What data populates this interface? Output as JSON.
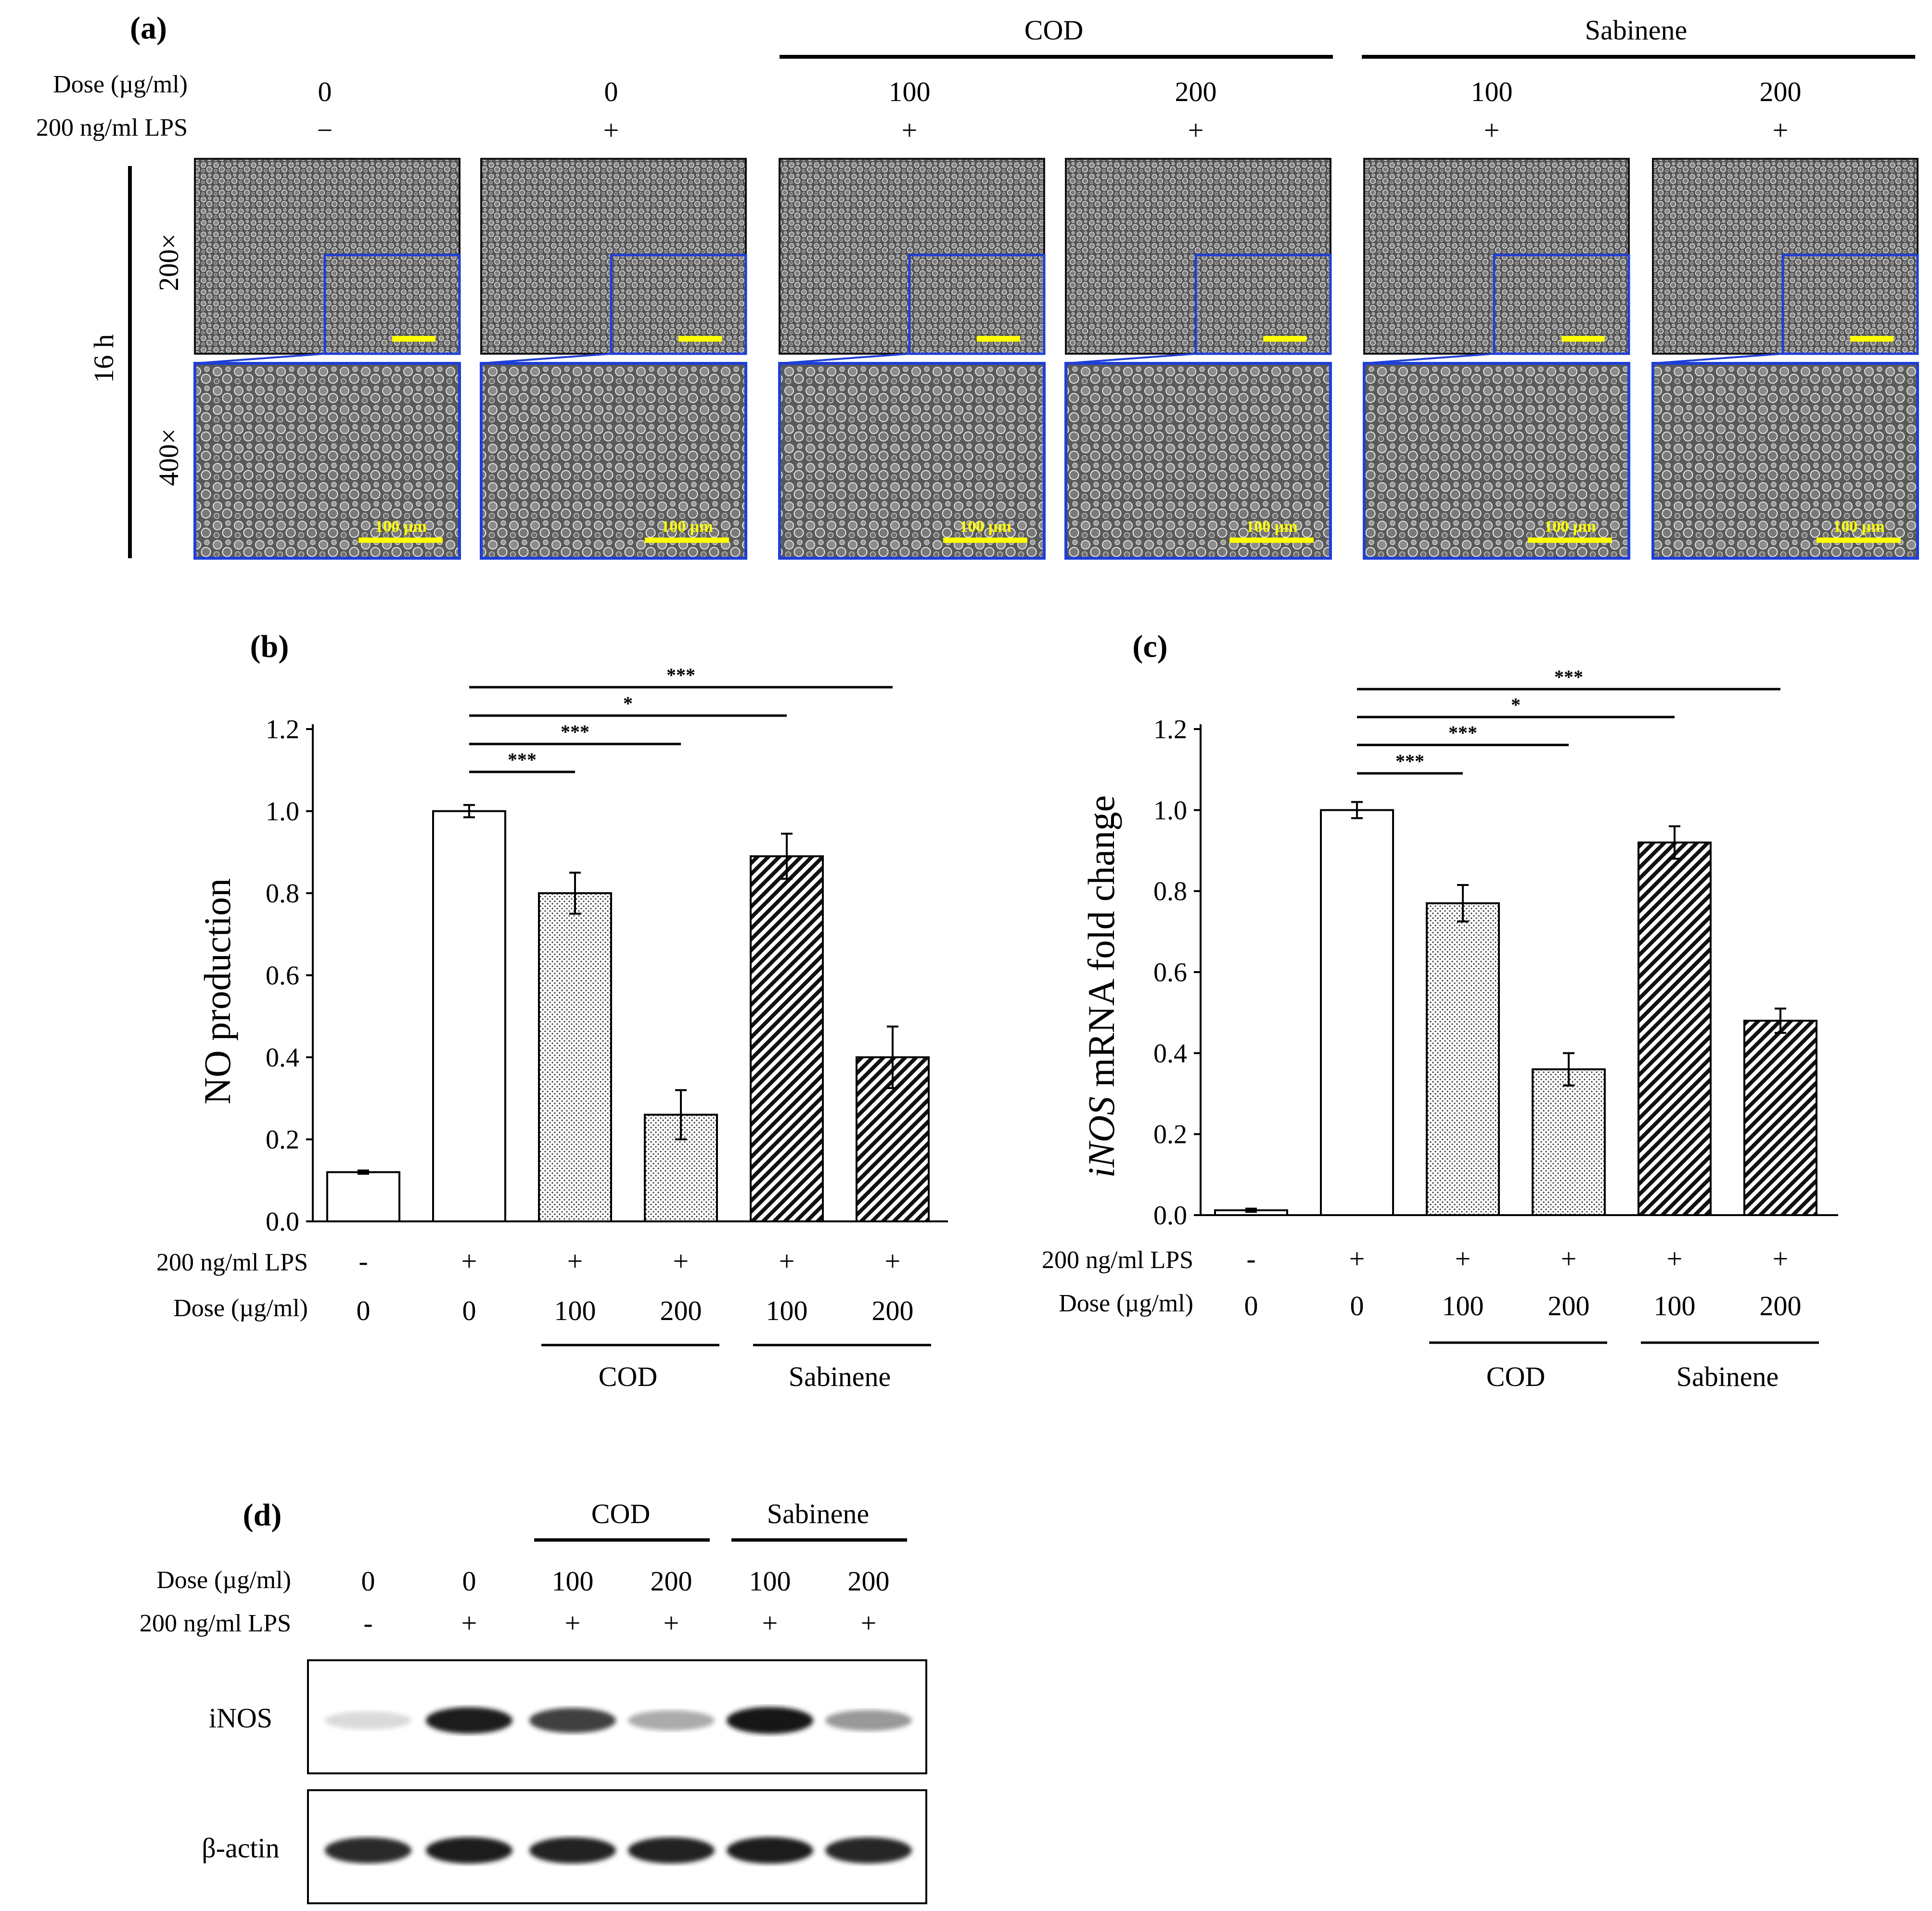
{
  "panel_labels": [
    "(a)",
    "(b)",
    "(c)",
    "(d)"
  ],
  "panel_a": {
    "group_labels": [
      "COD",
      "Sabinene"
    ],
    "dose_label": "Dose (µg/ml)",
    "lps_label": "200 ng/ml LPS",
    "doses": [
      "0",
      "0",
      "100",
      "200",
      "100",
      "200"
    ],
    "lps": [
      "−",
      "+",
      "+",
      "+",
      "+",
      "+"
    ],
    "time_label": "16 h",
    "mag_labels": [
      "200×",
      "400×"
    ],
    "scale_bar_label": "100 µm"
  },
  "colors": {
    "inset_border": "#1f3fd6",
    "scale_bar": "#ffff00",
    "micrograph_bg": "#4a4a4a"
  },
  "chart_data": [
    {
      "type": "bar",
      "panel": "(b)",
      "ylabel": "NO production",
      "ylim": [
        0,
        1.2
      ],
      "yticks": [
        "0.0",
        "0.2",
        "0.4",
        "0.6",
        "0.8",
        "1.0",
        "1.2"
      ],
      "row_labels": [
        "200 ng/ml LPS",
        "Dose (µg/ml)"
      ],
      "lps": [
        "-",
        "+",
        "+",
        "+",
        "+",
        "+"
      ],
      "doses": [
        "0",
        "0",
        "100",
        "200",
        "100",
        "200"
      ],
      "group_labels": [
        "COD",
        "Sabinene"
      ],
      "values": [
        0.12,
        1.0,
        0.8,
        0.26,
        0.89,
        0.4
      ],
      "errors": [
        0.004,
        0.015,
        0.05,
        0.06,
        0.055,
        0.075
      ],
      "fills": [
        "white",
        "white",
        "dots",
        "dots",
        "hatch",
        "hatch"
      ],
      "significance": [
        {
          "from": 1,
          "to": 2,
          "label": "***"
        },
        {
          "from": 1,
          "to": 3,
          "label": "***"
        },
        {
          "from": 1,
          "to": 4,
          "label": "*"
        },
        {
          "from": 1,
          "to": 5,
          "label": "***"
        }
      ]
    },
    {
      "type": "bar",
      "panel": "(c)",
      "ylabel": "iNOS mRNA fold change",
      "ylabel_italic": "iNOS",
      "ylabel_rest": " mRNA fold change",
      "ylim": [
        0,
        1.2
      ],
      "yticks": [
        "0.0",
        "0.2",
        "0.4",
        "0.6",
        "0.8",
        "1.0",
        "1.2"
      ],
      "row_labels": [
        "200 ng/ml LPS",
        "Dose (µg/ml)"
      ],
      "lps": [
        "-",
        "+",
        "+",
        "+",
        "+",
        "+"
      ],
      "doses": [
        "0",
        "0",
        "100",
        "200",
        "100",
        "200"
      ],
      "group_labels": [
        "COD",
        "Sabinene"
      ],
      "values": [
        0.012,
        1.0,
        0.77,
        0.36,
        0.92,
        0.48
      ],
      "errors": [
        0.004,
        0.02,
        0.045,
        0.04,
        0.04,
        0.03
      ],
      "fills": [
        "white",
        "white",
        "dots",
        "dots",
        "hatch",
        "hatch"
      ],
      "significance": [
        {
          "from": 1,
          "to": 2,
          "label": "***"
        },
        {
          "from": 1,
          "to": 3,
          "label": "***"
        },
        {
          "from": 1,
          "to": 4,
          "label": "*"
        },
        {
          "from": 1,
          "to": 5,
          "label": "***"
        }
      ]
    }
  ],
  "panel_d": {
    "group_labels": [
      "COD",
      "Sabinene"
    ],
    "dose_label": "Dose (µg/ml)",
    "lps_label": "200 ng/ml LPS",
    "doses": [
      "0",
      "0",
      "100",
      "200",
      "100",
      "200"
    ],
    "lps": [
      "-",
      "+",
      "+",
      "+",
      "+",
      "+"
    ],
    "blots": [
      {
        "label": "iNOS",
        "band_intensity": [
          0.08,
          0.95,
          0.8,
          0.3,
          1.0,
          0.38
        ]
      },
      {
        "label": "β-actin",
        "band_intensity": [
          0.9,
          0.95,
          0.93,
          0.93,
          0.96,
          0.92
        ]
      }
    ]
  }
}
